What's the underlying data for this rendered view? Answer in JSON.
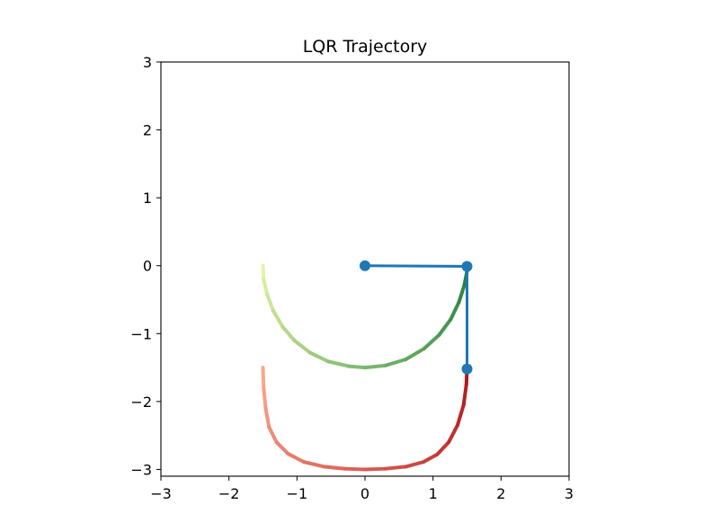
{
  "chart_data": {
    "type": "line",
    "title": "LQR Trajectory",
    "xlabel": "",
    "ylabel": "",
    "xlim": [
      -3.0,
      3.0
    ],
    "ylim": [
      -3.1,
      3.0
    ],
    "xticks": [
      -3,
      -2,
      -1,
      0,
      1,
      2,
      3
    ],
    "xtick_labels": [
      "−3",
      "−2",
      "−1",
      "0",
      "1",
      "2",
      "3"
    ],
    "yticks": [
      -3,
      -2,
      -1,
      0,
      1,
      2,
      3
    ],
    "ytick_labels": [
      "−3",
      "−2",
      "−1",
      "0",
      "1",
      "2",
      "3"
    ],
    "grid": false,
    "legend": false,
    "series": [
      {
        "kind": "trajectory",
        "colormap": "greens",
        "color_start": "#e3f5a5",
        "color_end": "#1a7a38",
        "x": [
          -1.5,
          -1.49,
          -1.44,
          -1.35,
          -1.21,
          -1.04,
          -0.81,
          -0.54,
          -0.24,
          0.0,
          0.3,
          0.6,
          0.87,
          1.09,
          1.26,
          1.38,
          1.46,
          1.5,
          1.5
        ],
        "y": [
          0.0,
          -0.2,
          -0.42,
          -0.66,
          -0.9,
          -1.1,
          -1.28,
          -1.41,
          -1.48,
          -1.5,
          -1.47,
          -1.38,
          -1.22,
          -1.02,
          -0.79,
          -0.54,
          -0.29,
          -0.08,
          0.0
        ]
      },
      {
        "kind": "trajectory",
        "colormap": "reds",
        "color_start": "#fca68a",
        "color_end": "#b3161d",
        "x": [
          -1.5,
          -1.49,
          -1.46,
          -1.41,
          -1.3,
          -1.13,
          -0.9,
          -0.6,
          -0.3,
          0.0,
          0.3,
          0.6,
          0.86,
          1.06,
          1.23,
          1.36,
          1.45,
          1.49,
          1.5
        ],
        "y": [
          -1.5,
          -1.8,
          -2.1,
          -2.38,
          -2.6,
          -2.77,
          -2.89,
          -2.96,
          -2.99,
          -3.0,
          -2.99,
          -2.96,
          -2.89,
          -2.78,
          -2.6,
          -2.35,
          -2.05,
          -1.75,
          -1.52
        ]
      },
      {
        "kind": "links",
        "color": "#1f77b4",
        "x": [
          0.0,
          1.5,
          1.5
        ],
        "y": [
          0.0,
          -0.01,
          -1.52
        ]
      }
    ]
  }
}
